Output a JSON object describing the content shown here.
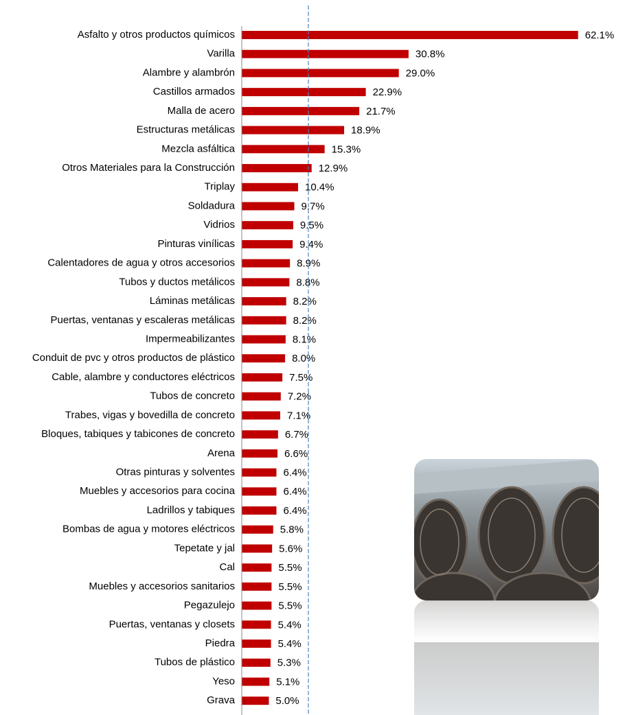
{
  "chart_data": {
    "type": "bar",
    "orientation": "horizontal",
    "color": "#c00000",
    "categories": [
      "Asfalto y otros productos químicos",
      "Varilla",
      "Alambre y alambrón",
      "Castillos armados",
      "Malla de acero",
      "Estructuras metálicas",
      "Mezcla asfáltica",
      "Otros Materiales para la Construcción",
      "Triplay",
      "Soldadura",
      "Vidrios",
      "Pinturas vinílicas",
      "Calentadores de agua y otros accesorios",
      "Tubos y ductos metálicos",
      "Láminas metálicas",
      "Puertas, ventanas y escaleras metálicas",
      "Impermeabilizantes",
      "Conduit de pvc y otros productos de plástico",
      "Cable, alambre y conductores eléctricos",
      "Tubos de concreto",
      "Trabes, vigas y bovedilla de concreto",
      "Bloques, tabiques y tabicones de concreto",
      "Arena",
      "Otras pinturas y solventes",
      "Muebles y accesorios para cocina",
      "Ladrillos y tabiques",
      "Bombas de agua y motores eléctricos",
      "Tepetate y jal",
      "Cal",
      "Muebles y accesorios sanitarios",
      "Pegazulejo",
      "Puertas, ventanas y closets",
      "Piedra",
      "Tubos de plástico",
      "Yeso",
      "Grava"
    ],
    "values": [
      62.1,
      30.8,
      29.0,
      22.9,
      21.7,
      18.9,
      15.3,
      12.9,
      10.4,
      9.7,
      9.5,
      9.4,
      8.9,
      8.8,
      8.2,
      8.2,
      8.1,
      8.0,
      7.5,
      7.2,
      7.1,
      6.7,
      6.6,
      6.4,
      6.4,
      6.4,
      5.8,
      5.6,
      5.5,
      5.5,
      5.5,
      5.4,
      5.4,
      5.3,
      5.1,
      5.0
    ],
    "value_labels": [
      "62.1%",
      "30.8%",
      "29.0%",
      "22.9%",
      "21.7%",
      "18.9%",
      "15.3%",
      "12.9%",
      "10.4%",
      "9.7%",
      "9.5%",
      "9.4%",
      "8.9%",
      "8.8%",
      "8.2%",
      "8.2%",
      "8.1%",
      "8.0%",
      "7.5%",
      "7.2%",
      "7.1%",
      "6.7%",
      "6.6%",
      "6.4%",
      "6.4%",
      "6.4%",
      "5.8%",
      "5.6%",
      "5.5%",
      "5.5%",
      "5.5%",
      "5.4%",
      "5.4%",
      "5.3%",
      "5.1%",
      "5.0%"
    ],
    "xlim": [
      0,
      70
    ],
    "reference_line": 12.3,
    "reference_color": "#4f81bd"
  }
}
